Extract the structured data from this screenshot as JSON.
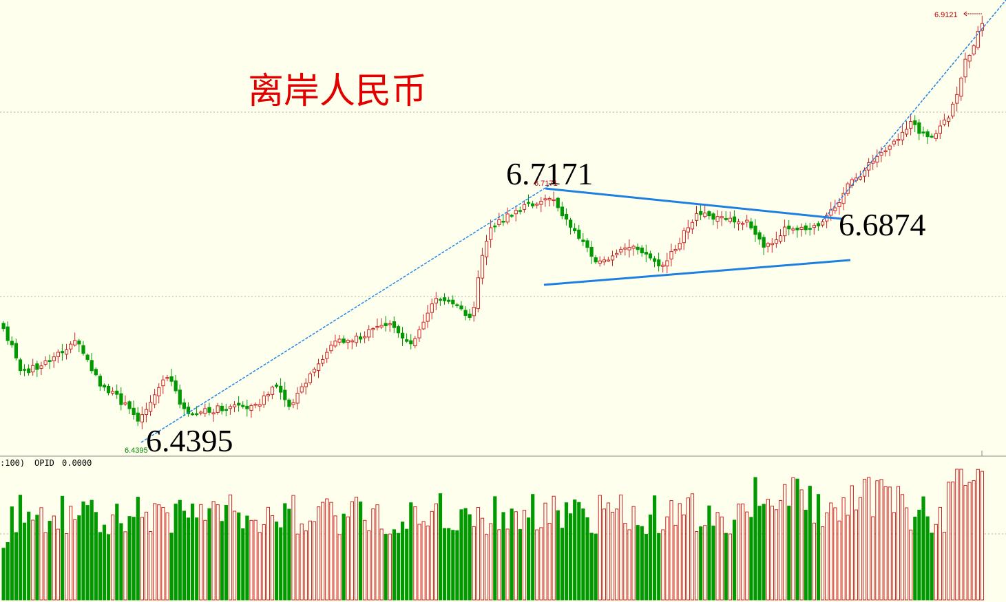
{
  "chart_data": [
    {
      "type": "candlestick",
      "title": "离岸人民币",
      "grid": "dotted horizontal",
      "colors": {
        "up": "#CC2222",
        "down": "#009900",
        "trendline": "#1E7FE0",
        "background": "#FFFFEE"
      },
      "annotations": {
        "high_label": "6.7171",
        "low_label": "6.4395",
        "resistance_label": "6.6874",
        "last_high_tag": "6.9121",
        "peak_tag": "6.7171",
        "trough_tag": "6.4395"
      },
      "ylim": [
        6.39,
        6.93
      ],
      "key_points": {
        "low": 6.4395,
        "mid_high": 6.7171,
        "breakout": 6.6874,
        "latest_high": 6.9121
      }
    },
    {
      "type": "bar",
      "indicator": {
        "params_label": ":100)",
        "name": "OPID",
        "value": "0.0000"
      },
      "colors": {
        "up": "#CC2222",
        "down": "#009900"
      }
    }
  ]
}
